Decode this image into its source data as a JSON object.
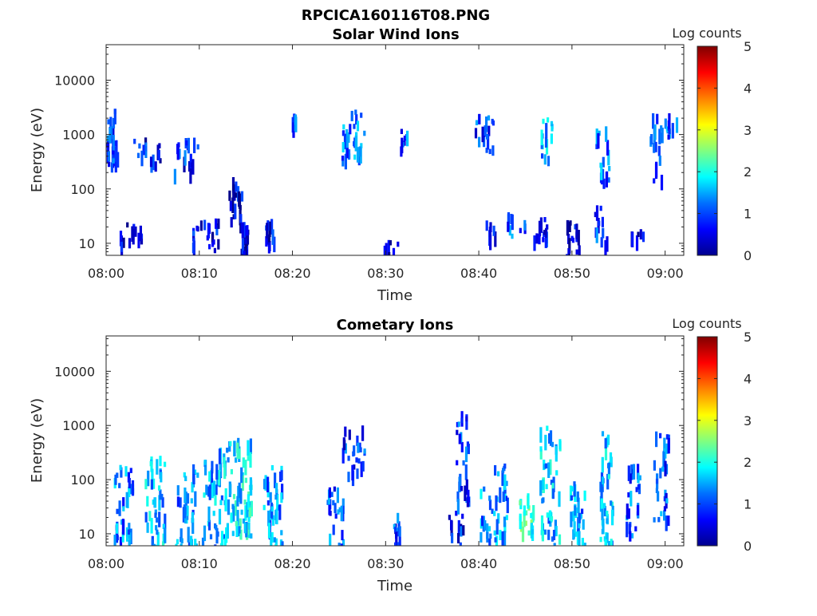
{
  "figure_title": "RPCICA160116T08.PNG",
  "chart_data": [
    {
      "type": "heatmap",
      "title": "Solar Wind Ions",
      "xlabel": "Time",
      "ylabel": "Energy (eV)",
      "x_ticks": [
        "08:00",
        "08:10",
        "08:20",
        "08:30",
        "08:40",
        "08:50",
        "09:00"
      ],
      "x_range": [
        "08:00",
        "09:02"
      ],
      "y_scale": "log",
      "y_ticks": [
        "10",
        "100",
        "1000",
        "10000"
      ],
      "y_range": [
        6,
        45000
      ],
      "grid": false,
      "colorbar": {
        "label": "Log counts",
        "range": [
          0,
          5
        ],
        "ticks": [
          "0",
          "1",
          "2",
          "3",
          "4",
          "5"
        ],
        "colormap": "jet"
      },
      "clusters": [
        {
          "t": 0.3,
          "dt": 1.8,
          "e_lo": 300,
          "e_hi": 3000,
          "c": 0.9,
          "n": 40
        },
        {
          "t": 1.6,
          "dt": 0.4,
          "e_lo": 10,
          "e_hi": 20,
          "c": 0.5,
          "n": 6
        },
        {
          "t": 2.8,
          "dt": 1.8,
          "e_lo": 12,
          "e_hi": 30,
          "c": 0.6,
          "n": 10
        },
        {
          "t": 3.5,
          "dt": 1.4,
          "e_lo": 400,
          "e_hi": 900,
          "c": 0.7,
          "n": 8
        },
        {
          "t": 5.2,
          "dt": 1.2,
          "e_lo": 300,
          "e_hi": 900,
          "c": 0.7,
          "n": 8
        },
        {
          "t": 8.5,
          "dt": 2.5,
          "e_lo": 200,
          "e_hi": 900,
          "c": 0.8,
          "n": 18
        },
        {
          "t": 9.5,
          "dt": 0.6,
          "e_lo": 10,
          "e_hi": 30,
          "c": 0.7,
          "n": 8
        },
        {
          "t": 11.0,
          "dt": 2.0,
          "e_lo": 8,
          "e_hi": 30,
          "c": 0.7,
          "n": 16
        },
        {
          "t": 13.8,
          "dt": 1.4,
          "e_lo": 30,
          "e_hi": 200,
          "c": 0.6,
          "n": 20
        },
        {
          "t": 14.7,
          "dt": 0.8,
          "e_lo": 6,
          "e_hi": 25,
          "c": 0.4,
          "n": 25
        },
        {
          "t": 17.5,
          "dt": 1.0,
          "e_lo": 10,
          "e_hi": 30,
          "c": 0.6,
          "n": 12
        },
        {
          "t": 20.0,
          "dt": 0.6,
          "e_lo": 1500,
          "e_hi": 2500,
          "c": 1.2,
          "n": 6
        },
        {
          "t": 26.5,
          "dt": 2.5,
          "e_lo": 400,
          "e_hi": 3000,
          "c": 1.3,
          "n": 35
        },
        {
          "t": 30.5,
          "dt": 1.5,
          "e_lo": 6,
          "e_hi": 12,
          "c": 0.4,
          "n": 8
        },
        {
          "t": 31.8,
          "dt": 0.8,
          "e_lo": 500,
          "e_hi": 1500,
          "c": 1.1,
          "n": 8
        },
        {
          "t": 40.5,
          "dt": 2.0,
          "e_lo": 500,
          "e_hi": 2500,
          "c": 1.0,
          "n": 20
        },
        {
          "t": 41.0,
          "dt": 1.5,
          "e_lo": 12,
          "e_hi": 30,
          "c": 0.7,
          "n": 8
        },
        {
          "t": 44.0,
          "dt": 2.0,
          "e_lo": 15,
          "e_hi": 40,
          "c": 1.1,
          "n": 10
        },
        {
          "t": 46.5,
          "dt": 1.5,
          "e_lo": 12,
          "e_hi": 35,
          "c": 0.7,
          "n": 14
        },
        {
          "t": 47.2,
          "dt": 1.2,
          "e_lo": 400,
          "e_hi": 2500,
          "c": 1.5,
          "n": 16
        },
        {
          "t": 50.0,
          "dt": 1.4,
          "e_lo": 6,
          "e_hi": 30,
          "c": 0.5,
          "n": 18
        },
        {
          "t": 53.2,
          "dt": 1.4,
          "e_lo": 150,
          "e_hi": 1500,
          "c": 1.2,
          "n": 18
        },
        {
          "t": 53.0,
          "dt": 1.4,
          "e_lo": 10,
          "e_hi": 50,
          "c": 1.0,
          "n": 12
        },
        {
          "t": 57.0,
          "dt": 1.4,
          "e_lo": 10,
          "e_hi": 20,
          "c": 0.6,
          "n": 6
        },
        {
          "t": 59.0,
          "dt": 1.4,
          "e_lo": 150,
          "e_hi": 2500,
          "c": 1.0,
          "n": 18
        },
        {
          "t": 60.5,
          "dt": 1.6,
          "e_lo": 1000,
          "e_hi": 2500,
          "c": 1.2,
          "n": 10
        }
      ]
    },
    {
      "type": "heatmap",
      "title": "Cometary Ions",
      "xlabel": "Time",
      "ylabel": "Energy (eV)",
      "x_ticks": [
        "08:00",
        "08:10",
        "08:20",
        "08:30",
        "08:40",
        "08:50",
        "09:00"
      ],
      "x_range": [
        "08:00",
        "09:02"
      ],
      "y_scale": "log",
      "y_ticks": [
        "10",
        "100",
        "1000",
        "10000"
      ],
      "y_range": [
        6,
        45000
      ],
      "grid": false,
      "colorbar": {
        "label": "Log counts",
        "range": [
          0,
          5
        ],
        "ticks": [
          "0",
          "1",
          "2",
          "3",
          "4",
          "5"
        ],
        "colormap": "jet"
      },
      "clusters": [
        {
          "t": 1.8,
          "dt": 2.0,
          "e_lo": 6,
          "e_hi": 200,
          "c": 1.3,
          "n": 40
        },
        {
          "t": 5.2,
          "dt": 2.2,
          "e_lo": 6,
          "e_hi": 300,
          "c": 1.6,
          "n": 45
        },
        {
          "t": 8.5,
          "dt": 2.4,
          "e_lo": 6,
          "e_hi": 200,
          "c": 1.4,
          "n": 40
        },
        {
          "t": 11.5,
          "dt": 2.5,
          "e_lo": 6,
          "e_hi": 400,
          "c": 1.5,
          "n": 50
        },
        {
          "t": 14.0,
          "dt": 3.0,
          "e_lo": 10,
          "e_hi": 600,
          "c": 1.8,
          "n": 75
        },
        {
          "t": 17.8,
          "dt": 2.0,
          "e_lo": 6,
          "e_hi": 200,
          "c": 1.4,
          "n": 40
        },
        {
          "t": 24.5,
          "dt": 1.8,
          "e_lo": 6,
          "e_hi": 80,
          "c": 1.1,
          "n": 25
        },
        {
          "t": 26.5,
          "dt": 2.4,
          "e_lo": 100,
          "e_hi": 1000,
          "c": 0.9,
          "n": 25
        },
        {
          "t": 31.0,
          "dt": 0.8,
          "e_lo": 6,
          "e_hi": 30,
          "c": 1.0,
          "n": 14
        },
        {
          "t": 37.5,
          "dt": 1.6,
          "e_lo": 6,
          "e_hi": 30,
          "c": 0.8,
          "n": 14
        },
        {
          "t": 38.2,
          "dt": 1.4,
          "e_lo": 40,
          "e_hi": 2000,
          "c": 0.9,
          "n": 30
        },
        {
          "t": 41.5,
          "dt": 3.0,
          "e_lo": 6,
          "e_hi": 200,
          "c": 1.4,
          "n": 45
        },
        {
          "t": 45.0,
          "dt": 1.5,
          "e_lo": 10,
          "e_hi": 60,
          "c": 2.2,
          "n": 22
        },
        {
          "t": 47.5,
          "dt": 2.2,
          "e_lo": 6,
          "e_hi": 1000,
          "c": 1.6,
          "n": 50
        },
        {
          "t": 50.5,
          "dt": 1.6,
          "e_lo": 6,
          "e_hi": 100,
          "c": 1.4,
          "n": 30
        },
        {
          "t": 53.6,
          "dt": 1.4,
          "e_lo": 6,
          "e_hi": 1000,
          "c": 1.6,
          "n": 45
        },
        {
          "t": 56.5,
          "dt": 1.5,
          "e_lo": 10,
          "e_hi": 200,
          "c": 1.1,
          "n": 25
        },
        {
          "t": 59.5,
          "dt": 1.8,
          "e_lo": 20,
          "e_hi": 800,
          "c": 1.1,
          "n": 30
        }
      ]
    }
  ]
}
